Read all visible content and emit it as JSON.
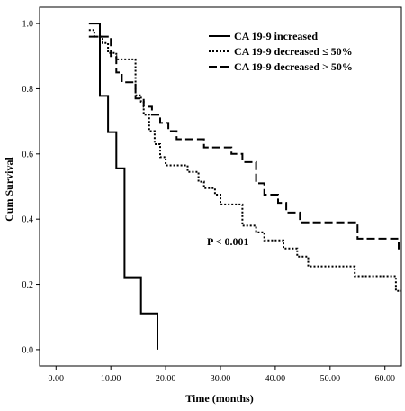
{
  "chart_data": {
    "type": "line",
    "xlabel": "Time (months)",
    "ylabel": "Cum Survival",
    "xlim": [
      -3,
      63
    ],
    "ylim": [
      -0.05,
      1.05
    ],
    "x_ticks": [
      "0.00",
      "10.00",
      "20.00",
      "30.00",
      "40.00",
      "50.00",
      "60.00"
    ],
    "y_ticks": [
      "0.0",
      "0.2",
      "0.4",
      "0.6",
      "0.8",
      "1.0"
    ],
    "grid": false,
    "legend_position": "top-right",
    "annotation": "P < 0.001",
    "series": [
      {
        "name": "CA 19-9 increased",
        "dash": "solid",
        "x": [
          6.0,
          8.0,
          8.0,
          9.5,
          9.5,
          11.0,
          11.0,
          12.5,
          12.5,
          15.5,
          15.5,
          18.5,
          18.5
        ],
        "y": [
          1.0,
          1.0,
          0.778,
          0.778,
          0.667,
          0.667,
          0.556,
          0.556,
          0.222,
          0.222,
          0.111,
          0.111,
          0.0
        ]
      },
      {
        "name": "CA 19-9 decreased ≤  50%",
        "dash": "dotted",
        "x": [
          6.0,
          7.0,
          7.0,
          8.5,
          8.5,
          9.5,
          9.5,
          11.0,
          11.0,
          14.5,
          14.5,
          15.5,
          15.5,
          16.0,
          16.0,
          17.0,
          17.0,
          18.0,
          18.0,
          19.0,
          19.0,
          20.0,
          20.0,
          24.0,
          24.0,
          26.0,
          26.0,
          27.0,
          27.0,
          29.0,
          29.0,
          30.0,
          30.0,
          34.0,
          34.0,
          36.5,
          36.5,
          38.0,
          38.0,
          41.5,
          41.5,
          44.0,
          44.0,
          46.0,
          46.0,
          54.5,
          54.5,
          62.0,
          62.0,
          63.0
        ],
        "y": [
          0.98,
          0.98,
          0.96,
          0.96,
          0.94,
          0.94,
          0.91,
          0.91,
          0.89,
          0.89,
          0.78,
          0.78,
          0.76,
          0.76,
          0.72,
          0.72,
          0.67,
          0.67,
          0.63,
          0.63,
          0.59,
          0.59,
          0.565,
          0.565,
          0.545,
          0.545,
          0.515,
          0.515,
          0.495,
          0.495,
          0.475,
          0.475,
          0.445,
          0.445,
          0.38,
          0.38,
          0.36,
          0.36,
          0.335,
          0.335,
          0.31,
          0.31,
          0.285,
          0.285,
          0.255,
          0.255,
          0.225,
          0.225,
          0.18,
          0.18
        ]
      },
      {
        "name": "CA 19-9 decreased > 50%",
        "dash": "dashed",
        "x": [
          6.0,
          10.0,
          10.0,
          11.0,
          11.0,
          12.0,
          12.0,
          14.5,
          14.5,
          16.0,
          16.0,
          17.5,
          17.5,
          19.0,
          19.0,
          20.5,
          20.5,
          22.0,
          22.0,
          27.0,
          27.0,
          32.0,
          32.0,
          34.0,
          34.0,
          36.5,
          36.5,
          38.0,
          38.0,
          40.5,
          40.5,
          42.0,
          42.0,
          44.5,
          44.5,
          55.0,
          55.0,
          62.5,
          62.5,
          63.0
        ],
        "y": [
          0.96,
          0.96,
          0.9,
          0.9,
          0.85,
          0.85,
          0.82,
          0.82,
          0.77,
          0.77,
          0.745,
          0.745,
          0.72,
          0.72,
          0.695,
          0.695,
          0.67,
          0.67,
          0.645,
          0.645,
          0.62,
          0.62,
          0.6,
          0.6,
          0.575,
          0.575,
          0.51,
          0.51,
          0.475,
          0.475,
          0.45,
          0.45,
          0.42,
          0.42,
          0.39,
          0.39,
          0.34,
          0.34,
          0.31,
          0.31
        ]
      }
    ]
  }
}
